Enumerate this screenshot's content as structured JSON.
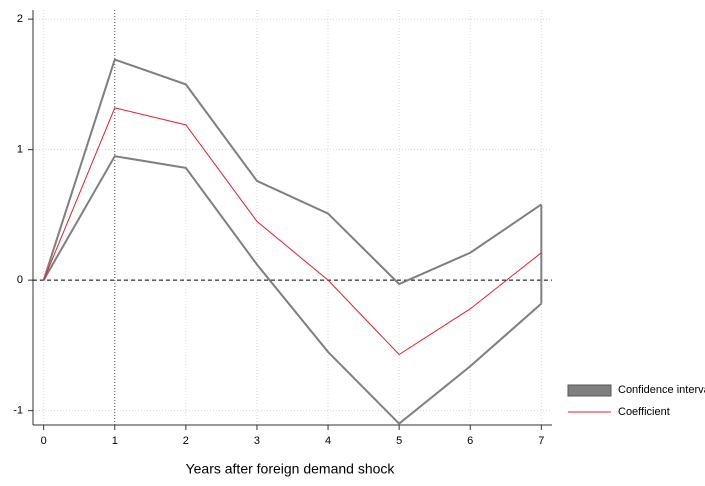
{
  "chart_data": {
    "type": "line",
    "x_label": "Years after foreign demand shock",
    "x": [
      0,
      1,
      2,
      3,
      4,
      5,
      6,
      7
    ],
    "band": {
      "name": "Confidence interval",
      "color": "#7f7f7f",
      "upper": [
        0,
        1.69,
        1.5,
        0.76,
        0.51,
        -0.03,
        0.21,
        0.58
      ],
      "lower": [
        0,
        0.95,
        0.86,
        0.12,
        -0.55,
        -1.1,
        -0.66,
        -0.18
      ]
    },
    "series": [
      {
        "name": "Coefficient",
        "color": "#e8202a",
        "values": [
          0,
          1.32,
          1.19,
          0.45,
          0.0,
          -0.57,
          -0.22,
          0.21
        ]
      }
    ],
    "xlim": [
      -0.15,
      7.15
    ],
    "ylim": [
      -1.11,
      2.07
    ],
    "xticks": [
      0,
      1,
      2,
      3,
      4,
      5,
      6,
      7
    ],
    "yticks": [
      -1,
      0,
      1,
      2
    ],
    "grid": true,
    "vline": 1,
    "hline": 0,
    "legend": "right"
  }
}
